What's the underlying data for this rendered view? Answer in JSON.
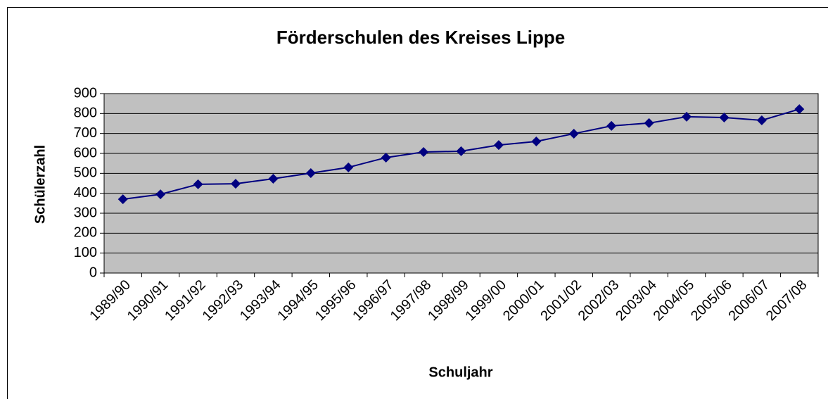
{
  "chart_data": {
    "type": "line",
    "title": "Förderschulen des Kreises Lippe",
    "x_label": "Schuljahr",
    "y_label": "Schülerzahl",
    "categories": [
      "1989/90",
      "1990/91",
      "1991/92",
      "1992/93",
      "1993/94",
      "1994/95",
      "1995/96",
      "1996/97",
      "1997/98",
      "1998/99",
      "1999/00",
      "2000/01",
      "2001/02",
      "2002/03",
      "2003/04",
      "2004/05",
      "2005/06",
      "2006/07",
      "2007/08"
    ],
    "series": [
      {
        "color": "#000080",
        "values": [
          370,
          395,
          445,
          448,
          473,
          501,
          530,
          579,
          607,
          611,
          642,
          660,
          699,
          738,
          752,
          784,
          780,
          766,
          822
        ]
      }
    ],
    "ylim": [
      0,
      900
    ],
    "yticks": [
      0,
      100,
      200,
      300,
      400,
      500,
      600,
      700,
      800,
      900
    ],
    "grid": true,
    "plot_background": "#c0c0c0"
  }
}
